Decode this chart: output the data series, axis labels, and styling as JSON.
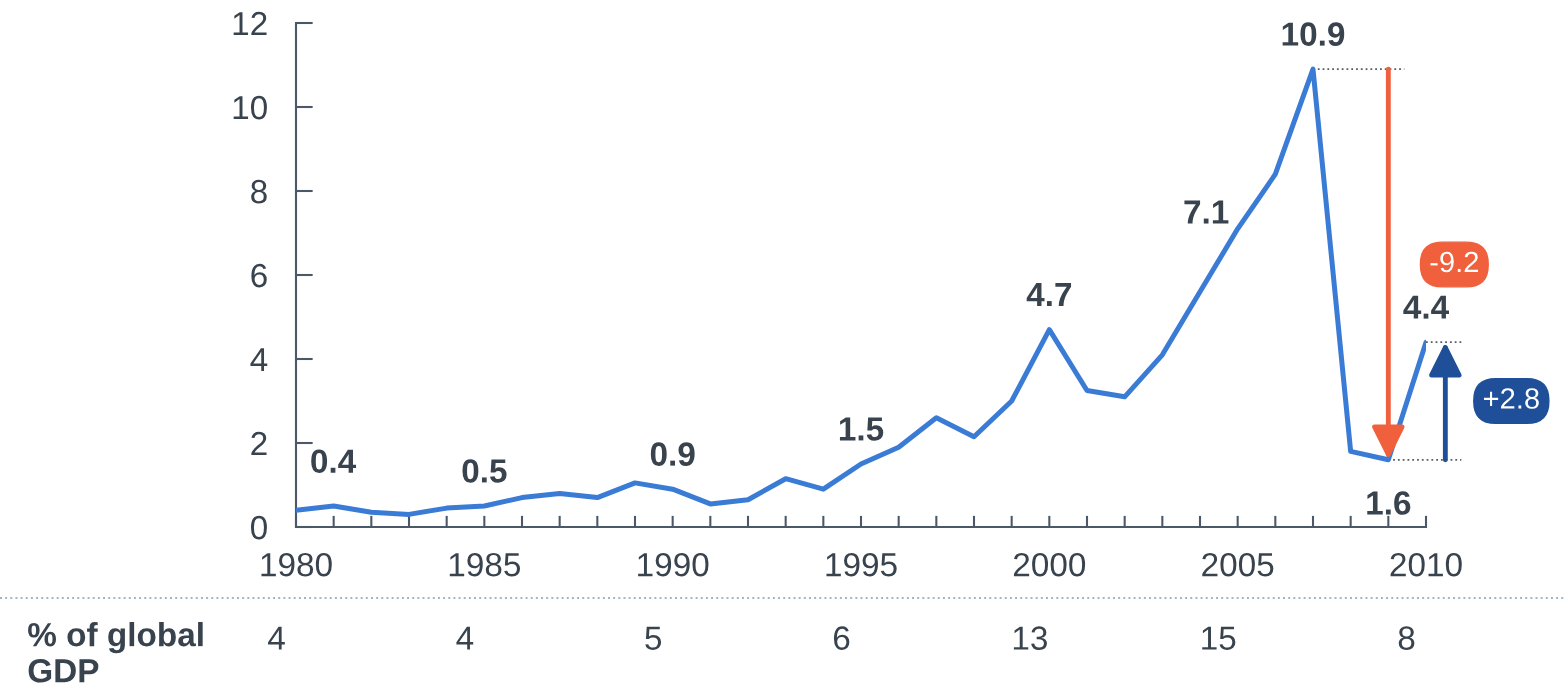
{
  "chart_data": [
    {
      "type": "line",
      "xlim": [
        1980,
        2010
      ],
      "ylim": [
        0,
        12
      ],
      "xticks": [
        1980,
        {
          "value": 1981,
          "label": null
        },
        {
          "value": 1982,
          "label": null
        },
        {
          "value": 1983,
          "label": null
        },
        {
          "value": 1984,
          "label": null
        },
        1985,
        {
          "value": 1986,
          "label": null
        },
        {
          "value": 1987,
          "label": null
        },
        {
          "value": 1988,
          "label": null
        },
        {
          "value": 1989,
          "label": null
        },
        1990,
        {
          "value": 1991,
          "label": null
        },
        {
          "value": 1992,
          "label": null
        },
        {
          "value": 1993,
          "label": null
        },
        {
          "value": 1994,
          "label": null
        },
        1995,
        {
          "value": 1996,
          "label": null
        },
        {
          "value": 1997,
          "label": null
        },
        {
          "value": 1998,
          "label": null
        },
        {
          "value": 1999,
          "label": null
        },
        2000,
        {
          "value": 2001,
          "label": null
        },
        {
          "value": 2002,
          "label": null
        },
        {
          "value": 2003,
          "label": null
        },
        {
          "value": 2004,
          "label": null
        },
        2005,
        {
          "value": 2006,
          "label": null
        },
        {
          "value": 2007,
          "label": null
        },
        {
          "value": 2008,
          "label": null
        },
        {
          "value": 2009,
          "label": null
        },
        2010
      ],
      "yticks": [
        0,
        2,
        4,
        6,
        8,
        10,
        12
      ],
      "series": [
        {
          "color": "#3a7bd5",
          "x": [
            1980,
            1981,
            1982,
            1983,
            1984,
            1985,
            1986,
            1987,
            1988,
            1989,
            1990,
            1991,
            1992,
            1993,
            1994,
            1995,
            1996,
            1997,
            1998,
            1999,
            2000,
            2001,
            2002,
            2003,
            2004,
            2005,
            2006,
            2007,
            2008,
            2009,
            2010
          ],
          "values": [
            0.4,
            0.5,
            0.35,
            0.3,
            0.45,
            0.5,
            0.7,
            0.8,
            0.7,
            1.05,
            0.9,
            0.55,
            0.65,
            1.15,
            0.9,
            1.5,
            1.9,
            2.6,
            2.15,
            3.0,
            4.7,
            3.25,
            3.1,
            4.1,
            5.6,
            7.1,
            8.4,
            10.9,
            1.8,
            1.6,
            4.4
          ],
          "value_labels": [
            "0.4",
            null,
            null,
            null,
            null,
            "0.5",
            null,
            null,
            null,
            null,
            "0.9",
            null,
            null,
            null,
            null,
            "1.5",
            null,
            null,
            null,
            null,
            "4.7",
            null,
            null,
            null,
            null,
            "7.1",
            null,
            "10.9",
            null,
            "1.6",
            "4.4"
          ]
        }
      ],
      "annotations": [
        "-9.2",
        "+2.8"
      ]
    },
    {
      "type": "other",
      "ylabel": "% of global GDP",
      "categories": [
        null,
        null,
        null,
        null,
        null,
        null,
        null
      ],
      "values": [
        4,
        4,
        5,
        6,
        13,
        15,
        8
      ],
      "data_labels": true
    }
  ]
}
